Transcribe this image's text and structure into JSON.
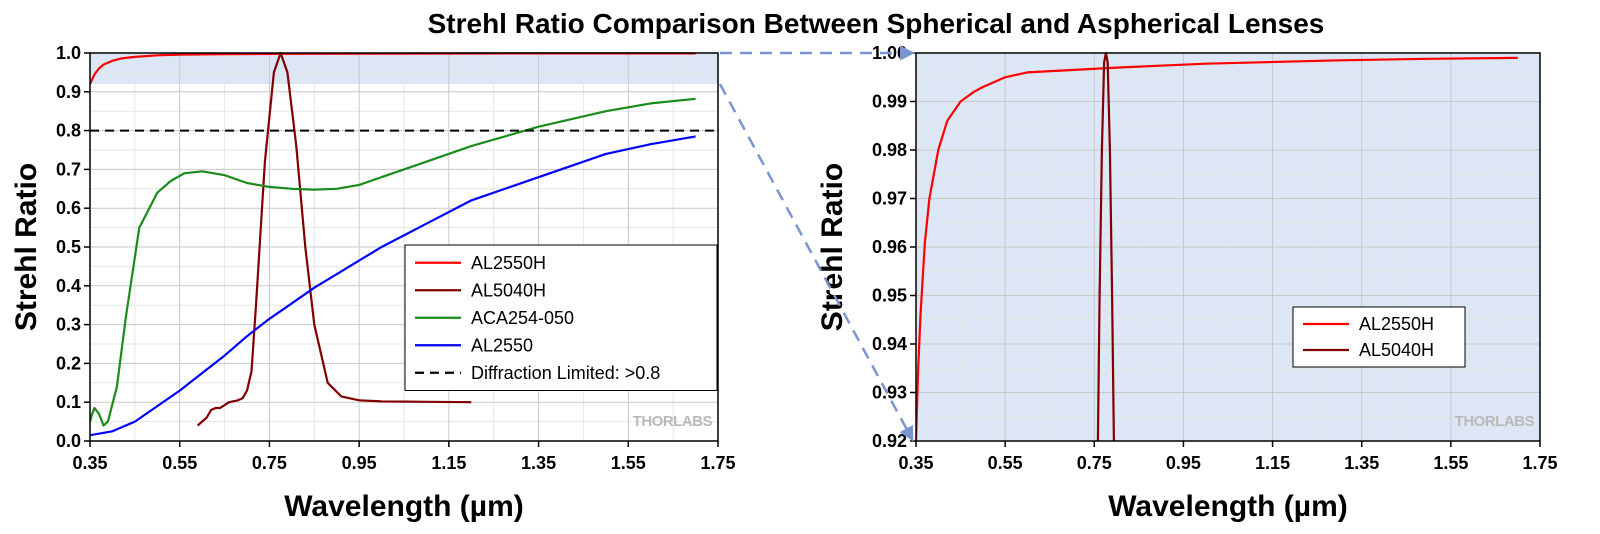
{
  "title": "Strehl Ratio Comparison Between Spherical and Aspherical Lenses",
  "watermark": "THORLABS",
  "colors": {
    "AL2550H": "#ff0000",
    "AL5040H": "#800000",
    "ACA254-050": "#1a8c1a",
    "AL2550": "#0000ff",
    "diffraction_limit": "#000000",
    "zoom_region": "#dce6f5",
    "zoom_arrow": "#7a95cf"
  },
  "chart_data": [
    {
      "type": "line",
      "xlabel": "Wavelength (µm)",
      "ylabel": "Strehl Ratio",
      "xlim": [
        0.35,
        1.75
      ],
      "ylim": [
        0.0,
        1.0
      ],
      "xticks": [
        "0.35",
        "0.55",
        "0.75",
        "0.95",
        "1.15",
        "1.35",
        "1.55",
        "1.75"
      ],
      "yticks": [
        "0.0",
        "0.1",
        "0.2",
        "0.3",
        "0.4",
        "0.5",
        "0.6",
        "0.7",
        "0.8",
        "0.9",
        "1.0"
      ],
      "grid": true,
      "legend_position": "lower-right",
      "highlight_region": {
        "ymin": 0.92,
        "ymax": 1.0
      },
      "series": [
        {
          "name": "AL2550H",
          "style": "solid",
          "x": [
            0.35,
            0.36,
            0.37,
            0.38,
            0.4,
            0.42,
            0.45,
            0.5,
            0.55,
            0.65,
            0.8,
            1.0,
            1.3,
            1.7
          ],
          "y": [
            0.92,
            0.945,
            0.96,
            0.97,
            0.98,
            0.986,
            0.99,
            0.994,
            0.996,
            0.997,
            0.998,
            0.9985,
            0.999,
            0.999
          ]
        },
        {
          "name": "AL5040H",
          "style": "solid",
          "x": [
            0.59,
            0.6,
            0.61,
            0.62,
            0.63,
            0.64,
            0.66,
            0.68,
            0.69,
            0.7,
            0.71,
            0.72,
            0.74,
            0.76,
            0.775,
            0.79,
            0.81,
            0.83,
            0.85,
            0.88,
            0.91,
            0.95,
            1.0,
            1.1,
            1.2
          ],
          "y": [
            0.04,
            0.05,
            0.06,
            0.08,
            0.085,
            0.085,
            0.1,
            0.105,
            0.11,
            0.13,
            0.18,
            0.35,
            0.72,
            0.95,
            1.0,
            0.95,
            0.76,
            0.5,
            0.3,
            0.15,
            0.115,
            0.105,
            0.102,
            0.101,
            0.1
          ]
        },
        {
          "name": "ACA254-050",
          "style": "solid",
          "x": [
            0.35,
            0.355,
            0.36,
            0.37,
            0.38,
            0.39,
            0.41,
            0.43,
            0.46,
            0.5,
            0.53,
            0.56,
            0.6,
            0.65,
            0.7,
            0.75,
            0.8,
            0.85,
            0.9,
            0.95,
            1.05,
            1.2,
            1.35,
            1.5,
            1.6,
            1.7
          ],
          "y": [
            0.05,
            0.07,
            0.085,
            0.07,
            0.04,
            0.05,
            0.14,
            0.32,
            0.55,
            0.64,
            0.67,
            0.69,
            0.695,
            0.685,
            0.665,
            0.655,
            0.65,
            0.648,
            0.65,
            0.66,
            0.7,
            0.76,
            0.81,
            0.85,
            0.87,
            0.882
          ]
        },
        {
          "name": "AL2550",
          "style": "solid",
          "x": [
            0.35,
            0.4,
            0.45,
            0.5,
            0.55,
            0.6,
            0.65,
            0.7,
            0.75,
            0.8,
            0.85,
            0.9,
            0.95,
            1.0,
            1.1,
            1.2,
            1.3,
            1.4,
            1.5,
            1.6,
            1.7
          ],
          "y": [
            0.015,
            0.025,
            0.05,
            0.09,
            0.13,
            0.175,
            0.22,
            0.27,
            0.315,
            0.355,
            0.395,
            0.43,
            0.465,
            0.5,
            0.56,
            0.62,
            0.66,
            0.7,
            0.74,
            0.765,
            0.785
          ]
        },
        {
          "name": "Diffraction Limited: >0.8",
          "style": "dashed",
          "x": [
            0.35,
            1.75
          ],
          "y": [
            0.8,
            0.8
          ]
        }
      ]
    },
    {
      "type": "line",
      "xlabel": "Wavelength (µm)",
      "ylabel": "Strehl Ratio",
      "xlim": [
        0.35,
        1.75
      ],
      "ylim": [
        0.92,
        1.0
      ],
      "xticks": [
        "0.35",
        "0.55",
        "0.75",
        "0.95",
        "1.15",
        "1.35",
        "1.55",
        "1.75"
      ],
      "yticks": [
        "0.92",
        "0.93",
        "0.94",
        "0.95",
        "0.96",
        "0.97",
        "0.98",
        "0.99",
        "1.00"
      ],
      "grid": true,
      "legend_position": "lower-right",
      "series": [
        {
          "name": "AL2550H",
          "style": "solid",
          "x": [
            0.35,
            0.355,
            0.36,
            0.37,
            0.38,
            0.4,
            0.42,
            0.45,
            0.48,
            0.5,
            0.55,
            0.6,
            0.7,
            0.8,
            1.0,
            1.3,
            1.5,
            1.7
          ],
          "y": [
            0.92,
            0.935,
            0.946,
            0.961,
            0.97,
            0.98,
            0.986,
            0.99,
            0.992,
            0.993,
            0.995,
            0.996,
            0.9965,
            0.997,
            0.9978,
            0.9985,
            0.9988,
            0.999
          ]
        },
        {
          "name": "AL5040H",
          "style": "solid",
          "x": [
            0.758,
            0.762,
            0.767,
            0.772,
            0.776,
            0.78,
            0.785,
            0.79,
            0.794
          ],
          "y": [
            0.92,
            0.95,
            0.98,
            0.998,
            1.0,
            0.998,
            0.98,
            0.95,
            0.92
          ]
        }
      ]
    }
  ]
}
